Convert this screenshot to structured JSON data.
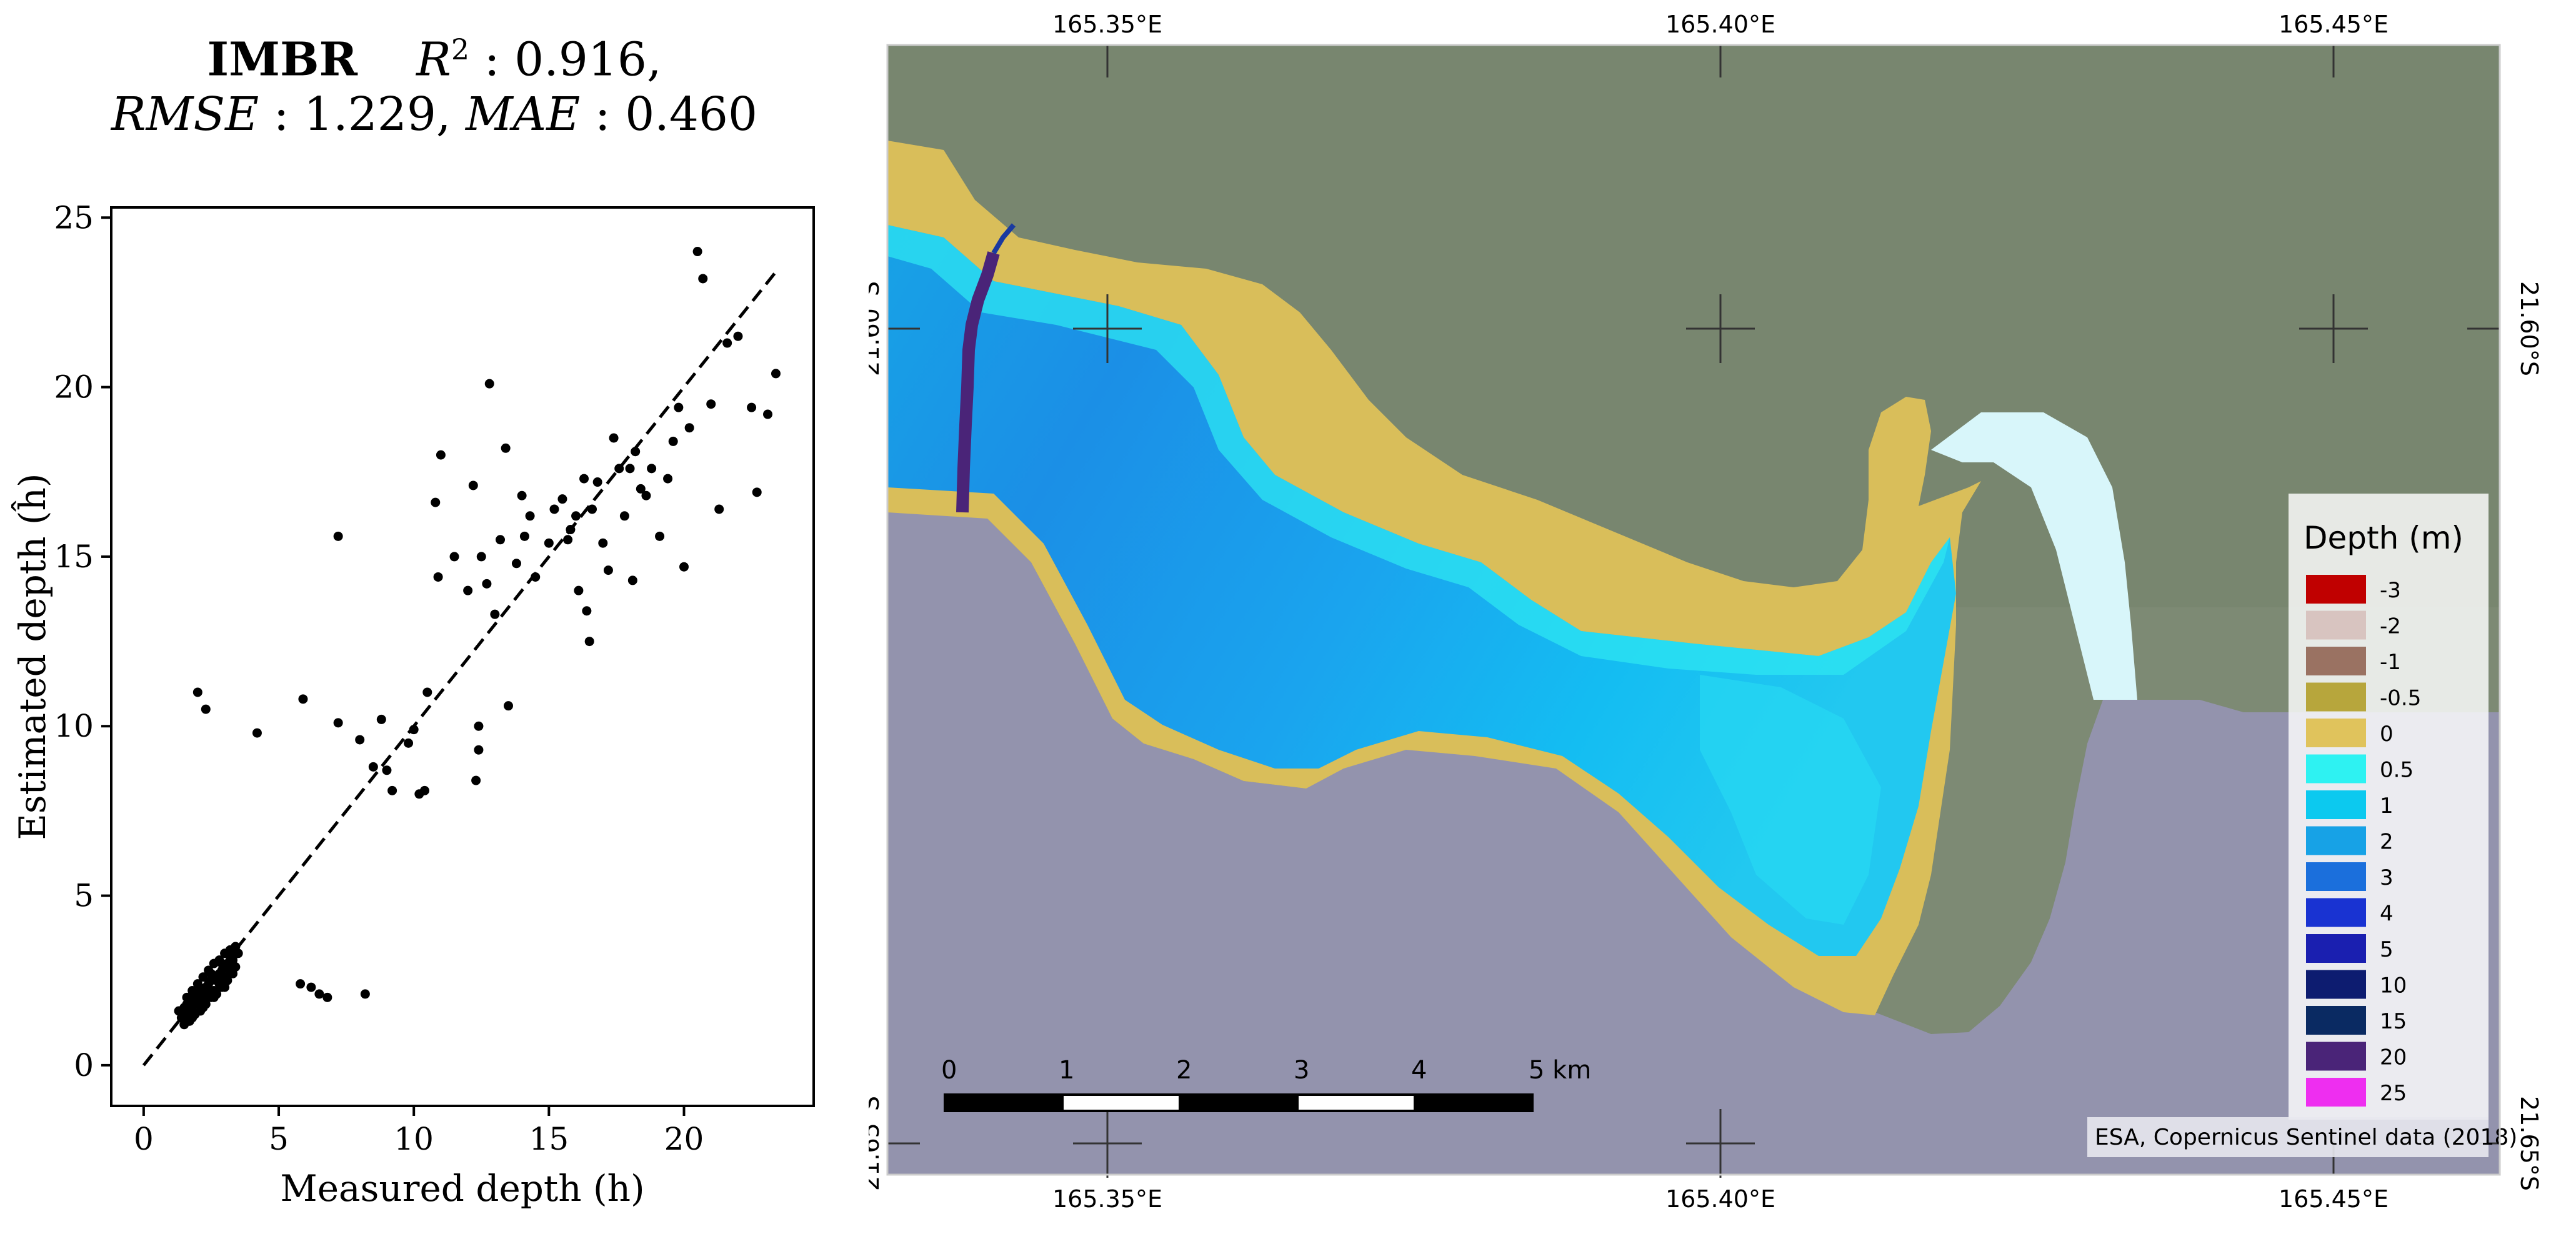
{
  "scatter_title": {
    "model": "IMBR",
    "r2_label": "R",
    "r2_exp": "2",
    "r2_value": ": 0.916,",
    "rmse_label": "RMSE",
    "rmse_value": ": 1.229,",
    "mae_label": "MAE",
    "mae_value": ": 0.460"
  },
  "chart_data": [
    {
      "type": "scatter",
      "title": "IMBR R2: 0.916, RMSE: 1.229, MAE: 0.460",
      "xlabel": "Measured depth (h)",
      "ylabel": "Estimated depth (ĥ)",
      "xlim": [
        -1.2,
        24.8
      ],
      "ylim": [
        -1.2,
        25.3
      ],
      "xticks": [
        0,
        5,
        10,
        15,
        20
      ],
      "yticks": [
        0,
        5,
        10,
        15,
        20,
        25
      ],
      "reference_line": {
        "style": "dashed",
        "from": [
          0,
          0
        ],
        "to": [
          23.5,
          23.5
        ]
      },
      "points": [
        [
          1.4,
          1.4
        ],
        [
          1.5,
          1.7
        ],
        [
          1.6,
          1.5
        ],
        [
          1.7,
          1.9
        ],
        [
          1.8,
          1.6
        ],
        [
          1.9,
          2.0
        ],
        [
          2.0,
          1.8
        ],
        [
          2.1,
          2.2
        ],
        [
          2.2,
          1.9
        ],
        [
          2.3,
          2.3
        ],
        [
          2.4,
          2.1
        ],
        [
          2.5,
          2.5
        ],
        [
          2.6,
          2.2
        ],
        [
          2.7,
          2.6
        ],
        [
          2.8,
          2.4
        ],
        [
          2.9,
          2.8
        ],
        [
          3.0,
          2.6
        ],
        [
          3.1,
          3.0
        ],
        [
          3.2,
          2.8
        ],
        [
          3.3,
          3.2
        ],
        [
          1.5,
          1.2
        ],
        [
          1.7,
          1.3
        ],
        [
          1.9,
          1.5
        ],
        [
          2.1,
          1.6
        ],
        [
          2.3,
          1.8
        ],
        [
          2.5,
          2.0
        ],
        [
          2.7,
          2.1
        ],
        [
          2.9,
          2.3
        ],
        [
          3.1,
          2.5
        ],
        [
          3.3,
          2.7
        ],
        [
          1.6,
          2.0
        ],
        [
          1.8,
          2.2
        ],
        [
          2.0,
          2.4
        ],
        [
          2.2,
          2.6
        ],
        [
          2.4,
          2.8
        ],
        [
          2.6,
          3.0
        ],
        [
          2.8,
          3.1
        ],
        [
          3.0,
          3.3
        ],
        [
          3.2,
          3.4
        ],
        [
          3.4,
          3.5
        ],
        [
          1.3,
          1.6
        ],
        [
          1.6,
          1.8
        ],
        [
          2.0,
          2.1
        ],
        [
          2.4,
          2.4
        ],
        [
          2.8,
          2.7
        ],
        [
          3.2,
          3.1
        ],
        [
          3.5,
          3.3
        ],
        [
          1.8,
          1.4
        ],
        [
          2.2,
          1.7
        ],
        [
          2.6,
          2.0
        ],
        [
          3.0,
          2.3
        ],
        [
          3.4,
          2.9
        ],
        [
          2.5,
          2.7
        ],
        [
          2.9,
          3.0
        ],
        [
          2.1,
          2.0
        ],
        [
          1.9,
          1.8
        ],
        [
          2.3,
          2.2
        ],
        [
          2.7,
          2.5
        ],
        [
          3.1,
          2.9
        ],
        [
          3.3,
          3.1
        ],
        [
          2.0,
          11.0
        ],
        [
          2.3,
          10.5
        ],
        [
          4.2,
          9.8
        ],
        [
          5.8,
          2.4
        ],
        [
          6.2,
          2.3
        ],
        [
          6.5,
          2.1
        ],
        [
          6.8,
          2.0
        ],
        [
          8.2,
          2.1
        ],
        [
          5.9,
          10.8
        ],
        [
          7.2,
          10.1
        ],
        [
          7.2,
          15.6
        ],
        [
          8.0,
          9.6
        ],
        [
          8.5,
          8.8
        ],
        [
          8.8,
          10.2
        ],
        [
          9.0,
          8.7
        ],
        [
          9.2,
          8.1
        ],
        [
          9.8,
          9.5
        ],
        [
          10.0,
          9.9
        ],
        [
          10.2,
          8.0
        ],
        [
          10.4,
          8.1
        ],
        [
          10.5,
          11.0
        ],
        [
          10.8,
          16.6
        ],
        [
          10.9,
          14.4
        ],
        [
          11.0,
          18.0
        ],
        [
          11.5,
          15.0
        ],
        [
          12.0,
          14.0
        ],
        [
          12.2,
          17.1
        ],
        [
          12.3,
          8.4
        ],
        [
          12.4,
          10.0
        ],
        [
          12.4,
          9.3
        ],
        [
          12.5,
          15.0
        ],
        [
          12.7,
          14.2
        ],
        [
          12.8,
          20.1
        ],
        [
          13.0,
          13.3
        ],
        [
          13.2,
          15.5
        ],
        [
          13.4,
          18.2
        ],
        [
          13.5,
          10.6
        ],
        [
          13.8,
          14.8
        ],
        [
          14.0,
          16.8
        ],
        [
          14.1,
          15.6
        ],
        [
          14.3,
          16.2
        ],
        [
          14.5,
          14.4
        ],
        [
          15.0,
          15.4
        ],
        [
          15.2,
          16.4
        ],
        [
          15.5,
          16.7
        ],
        [
          15.7,
          15.5
        ],
        [
          15.8,
          15.8
        ],
        [
          16.0,
          16.2
        ],
        [
          16.1,
          14.0
        ],
        [
          16.3,
          17.3
        ],
        [
          16.4,
          13.4
        ],
        [
          16.5,
          12.5
        ],
        [
          16.6,
          16.4
        ],
        [
          16.8,
          17.2
        ],
        [
          17.0,
          15.4
        ],
        [
          17.2,
          14.6
        ],
        [
          17.4,
          18.5
        ],
        [
          17.6,
          17.6
        ],
        [
          17.8,
          16.2
        ],
        [
          18.0,
          17.6
        ],
        [
          18.1,
          14.3
        ],
        [
          18.2,
          18.1
        ],
        [
          18.4,
          17.0
        ],
        [
          18.6,
          16.8
        ],
        [
          18.8,
          17.6
        ],
        [
          19.1,
          15.6
        ],
        [
          19.4,
          17.3
        ],
        [
          19.6,
          18.4
        ],
        [
          19.8,
          19.4
        ],
        [
          20.0,
          14.7
        ],
        [
          20.2,
          18.8
        ],
        [
          20.5,
          24.0
        ],
        [
          20.7,
          23.2
        ],
        [
          21.0,
          19.5
        ],
        [
          21.3,
          16.4
        ],
        [
          21.6,
          21.3
        ],
        [
          22.0,
          21.5
        ],
        [
          22.5,
          19.4
        ],
        [
          22.7,
          16.9
        ],
        [
          23.1,
          19.2
        ],
        [
          23.4,
          20.4
        ]
      ]
    },
    {
      "type": "heatmap",
      "title": "",
      "legend_title": "Depth (m)",
      "legend_position": "right",
      "legend": [
        {
          "label": "-3",
          "color": "#c00000"
        },
        {
          "label": "-2",
          "color": "#d8c4c0"
        },
        {
          "label": "-1",
          "color": "#9a7262"
        },
        {
          "label": "-0.5",
          "color": "#b7a63c"
        },
        {
          "label": "0",
          "color": "#e0c35c"
        },
        {
          "label": "0.5",
          "color": "#2ef2f2"
        },
        {
          "label": "1",
          "color": "#0cc9ef"
        },
        {
          "label": "2",
          "color": "#17a2e6"
        },
        {
          "label": "3",
          "color": "#1b6fdc"
        },
        {
          "label": "4",
          "color": "#1933d2"
        },
        {
          "label": "5",
          "color": "#1a1fb0"
        },
        {
          "label": "10",
          "color": "#0d1c70"
        },
        {
          "label": "15",
          "color": "#0a2a62"
        },
        {
          "label": "20",
          "color": "#4a2478"
        },
        {
          "label": "25",
          "color": "#ee2ef0"
        }
      ],
      "x_ticks_top": [
        "165.35°E",
        "165.40°E",
        "165.45°E"
      ],
      "x_ticks_bottom": [
        "165.35°E",
        "165.40°E",
        "165.45°E"
      ],
      "y_ticks_left": [
        "21.60°S",
        "21.65°S"
      ],
      "y_ticks_right": [
        "21.60°S",
        "21.65°S"
      ],
      "scale_bar": {
        "labels": [
          "0",
          "1",
          "2",
          "3",
          "4",
          "5 km"
        ]
      },
      "credit": "ESA, Copernicus Sentinel data (2018)",
      "colors": {
        "land": "#7d8a74",
        "ocean": "#9393ad"
      }
    }
  ]
}
